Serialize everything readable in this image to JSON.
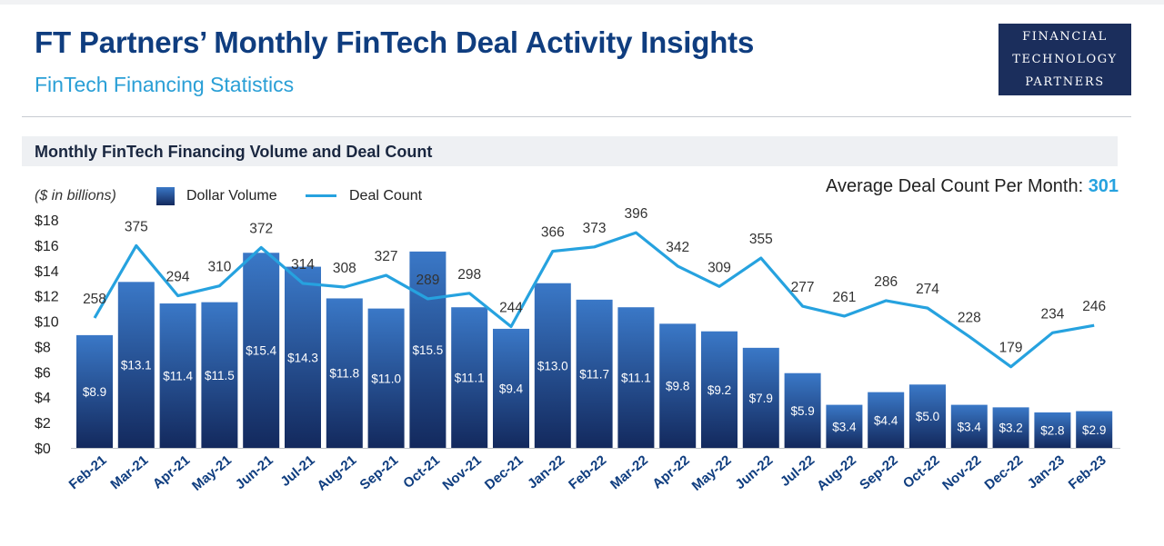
{
  "header": {
    "title": "FT Partners’ Monthly FinTech Deal Activity Insights",
    "subtitle": "FinTech Financing Statistics"
  },
  "logo": {
    "lines": [
      "FINANCIAL",
      "TECHNOLOGY",
      "PARTNERS"
    ]
  },
  "section": {
    "title": "Monthly FinTech Financing Volume and Deal Count"
  },
  "legend": {
    "units": "($ in billions)",
    "bar_label": "Dollar Volume",
    "line_label": "Deal Count"
  },
  "average": {
    "label": "Average Deal Count Per Month:",
    "value": "301"
  },
  "colors": {
    "brand_navy": "#0f3d7f",
    "accent_blue": "#26a2df",
    "bar_top": "#3a78c7",
    "bar_bottom": "#13295d"
  },
  "chart_data": {
    "type": "bar",
    "ylabel": "$ in billions",
    "ylim": [
      0,
      18
    ],
    "y_ticks": [
      "$0",
      "$2",
      "$4",
      "$6",
      "$8",
      "$10",
      "$12",
      "$14",
      "$16",
      "$18"
    ],
    "categories": [
      "Feb-21",
      "Mar-21",
      "Apr-21",
      "May-21",
      "Jun-21",
      "Jul-21",
      "Aug-21",
      "Sep-21",
      "Oct-21",
      "Nov-21",
      "Dec-21",
      "Jan-22",
      "Feb-22",
      "Mar-22",
      "Apr-22",
      "May-22",
      "Jun-22",
      "Jul-22",
      "Aug-22",
      "Sep-22",
      "Oct-22",
      "Nov-22",
      "Dec-22",
      "Jan-23",
      "Feb-23"
    ],
    "series": [
      {
        "name": "Dollar Volume",
        "type": "bar",
        "values": [
          8.9,
          13.1,
          11.4,
          11.5,
          15.4,
          14.3,
          11.8,
          11.0,
          15.5,
          11.1,
          9.4,
          13.0,
          11.7,
          11.1,
          9.8,
          9.2,
          7.9,
          5.9,
          3.4,
          4.4,
          5.0,
          3.4,
          3.2,
          2.8,
          2.9
        ],
        "labels": [
          "$8.9",
          "$13.1",
          "$11.4",
          "$11.5",
          "$15.4",
          "$14.3",
          "$11.8",
          "$11.0",
          "$15.5",
          "$11.1",
          "$9.4",
          "$13.0",
          "$11.7",
          "$11.1",
          "$9.8",
          "$9.2",
          "$7.9",
          "$5.9",
          "$3.4",
          "$4.4",
          "$5.0",
          "$3.4",
          "$3.2",
          "$2.8",
          "$2.9"
        ]
      },
      {
        "name": "Deal Count",
        "type": "line",
        "values": [
          258,
          375,
          294,
          310,
          372,
          314,
          308,
          327,
          289,
          298,
          244,
          366,
          373,
          396,
          342,
          309,
          355,
          277,
          261,
          286,
          274,
          228,
          179,
          234,
          246
        ],
        "labels": [
          "258",
          "375",
          "294",
          "310",
          "372",
          "314",
          "308",
          "327",
          "289",
          "298",
          "244",
          "366",
          "373",
          "396",
          "342",
          "309",
          "355",
          "277",
          "261",
          "286",
          "274",
          "228",
          "179",
          "234",
          "246"
        ]
      }
    ]
  }
}
